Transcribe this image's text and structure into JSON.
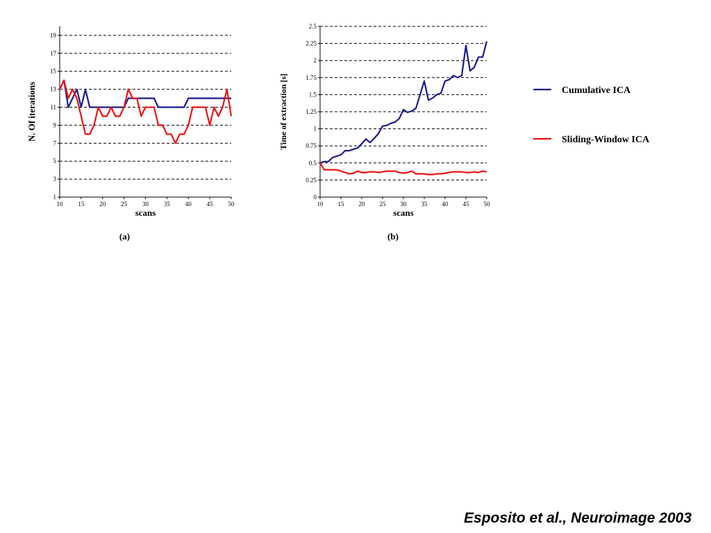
{
  "citation": "Esposito et al., Neuroimage 2003",
  "colors": {
    "cumulative": "#1a1a8c",
    "sliding": "#ee1111",
    "grid": "#000000"
  },
  "legend": {
    "placement": "right",
    "entries": [
      {
        "label": "Cumulative ICA",
        "color": "#1a1a8c"
      },
      {
        "label": "Sliding-Window ICA",
        "color": "#ee1111"
      }
    ]
  },
  "chart_data": [
    {
      "type": "line",
      "panel_label": "(a)",
      "xlabel": "scans",
      "ylabel": "N. Of iterations",
      "xlim": [
        10,
        50
      ],
      "ylim": [
        1,
        20
      ],
      "xticks": [
        10,
        15,
        20,
        25,
        30,
        35,
        40,
        45,
        50
      ],
      "yticks": [
        1,
        3,
        5,
        7,
        9,
        11,
        13,
        15,
        17,
        19
      ],
      "grid": "horizontal dashed",
      "series": [
        {
          "name": "Cumulative ICA",
          "color": "#1a1a8c",
          "x": [
            10,
            11,
            12,
            13,
            14,
            15,
            16,
            17,
            18,
            19,
            20,
            21,
            22,
            23,
            24,
            25,
            26,
            27,
            28,
            29,
            30,
            31,
            32,
            33,
            34,
            35,
            36,
            37,
            38,
            39,
            40,
            41,
            42,
            43,
            44,
            45,
            46,
            47,
            48,
            49,
            50
          ],
          "y": [
            13,
            14,
            11,
            12,
            13,
            11,
            13,
            11,
            11,
            11,
            11,
            11,
            11,
            11,
            11,
            11,
            12,
            12,
            12,
            12,
            12,
            12,
            12,
            11,
            11,
            11,
            11,
            11,
            11,
            11,
            12,
            12,
            12,
            12,
            12,
            12,
            12,
            12,
            12,
            12,
            12
          ]
        },
        {
          "name": "Sliding-Window ICA",
          "color": "#ee1111",
          "x": [
            10,
            11,
            12,
            13,
            14,
            15,
            16,
            17,
            18,
            19,
            20,
            21,
            22,
            23,
            24,
            25,
            26,
            27,
            28,
            29,
            30,
            31,
            32,
            33,
            34,
            35,
            36,
            37,
            38,
            39,
            40,
            41,
            42,
            43,
            44,
            45,
            46,
            47,
            48,
            49,
            50
          ],
          "y": [
            13,
            14,
            12,
            13,
            12,
            10,
            8,
            8,
            9,
            11,
            10,
            10,
            11,
            10,
            10,
            11,
            13,
            12,
            12,
            10,
            11,
            11,
            11,
            9,
            9,
            8,
            8,
            7,
            8,
            8,
            9,
            11,
            11,
            11,
            11,
            9,
            11,
            10,
            11,
            13,
            10
          ]
        }
      ]
    },
    {
      "type": "line",
      "panel_label": "(b)",
      "xlabel": "scans",
      "ylabel": "Time of extraction [s]",
      "xlim": [
        10,
        50
      ],
      "ylim": [
        0,
        2.5
      ],
      "xticks": [
        10,
        15,
        20,
        25,
        30,
        35,
        40,
        45,
        50
      ],
      "yticks": [
        0,
        0.25,
        0.5,
        0.75,
        1,
        1.25,
        1.5,
        1.75,
        2,
        2.25,
        2.5
      ],
      "grid": "horizontal dashed",
      "series": [
        {
          "name": "Cumulative ICA",
          "color": "#1a1a8c",
          "x": [
            10,
            11,
            12,
            13,
            14,
            15,
            16,
            17,
            18,
            19,
            20,
            21,
            22,
            23,
            24,
            25,
            26,
            27,
            28,
            29,
            30,
            31,
            32,
            33,
            34,
            35,
            36,
            37,
            38,
            39,
            40,
            41,
            42,
            43,
            44,
            45,
            46,
            47,
            48,
            49,
            50
          ],
          "y": [
            0.5,
            0.52,
            0.52,
            0.58,
            0.6,
            0.62,
            0.68,
            0.68,
            0.7,
            0.72,
            0.78,
            0.85,
            0.8,
            0.86,
            0.93,
            1.04,
            1.05,
            1.08,
            1.1,
            1.15,
            1.28,
            1.24,
            1.26,
            1.3,
            1.5,
            1.7,
            1.42,
            1.45,
            1.5,
            1.52,
            1.7,
            1.72,
            1.78,
            1.75,
            1.78,
            2.22,
            1.85,
            1.9,
            2.05,
            2.05,
            2.28
          ]
        },
        {
          "name": "Sliding-Window ICA",
          "color": "#ee1111",
          "x": [
            10,
            11,
            12,
            13,
            14,
            15,
            16,
            17,
            18,
            19,
            20,
            21,
            22,
            23,
            24,
            25,
            26,
            27,
            28,
            29,
            30,
            31,
            32,
            33,
            34,
            35,
            36,
            37,
            38,
            39,
            40,
            41,
            42,
            43,
            44,
            45,
            46,
            47,
            48,
            49,
            50
          ],
          "y": [
            0.5,
            0.4,
            0.4,
            0.4,
            0.4,
            0.38,
            0.36,
            0.34,
            0.35,
            0.38,
            0.36,
            0.36,
            0.37,
            0.37,
            0.36,
            0.37,
            0.38,
            0.38,
            0.38,
            0.36,
            0.35,
            0.36,
            0.38,
            0.34,
            0.34,
            0.34,
            0.33,
            0.33,
            0.34,
            0.34,
            0.35,
            0.36,
            0.37,
            0.37,
            0.37,
            0.36,
            0.36,
            0.37,
            0.36,
            0.38,
            0.37
          ]
        }
      ]
    }
  ]
}
